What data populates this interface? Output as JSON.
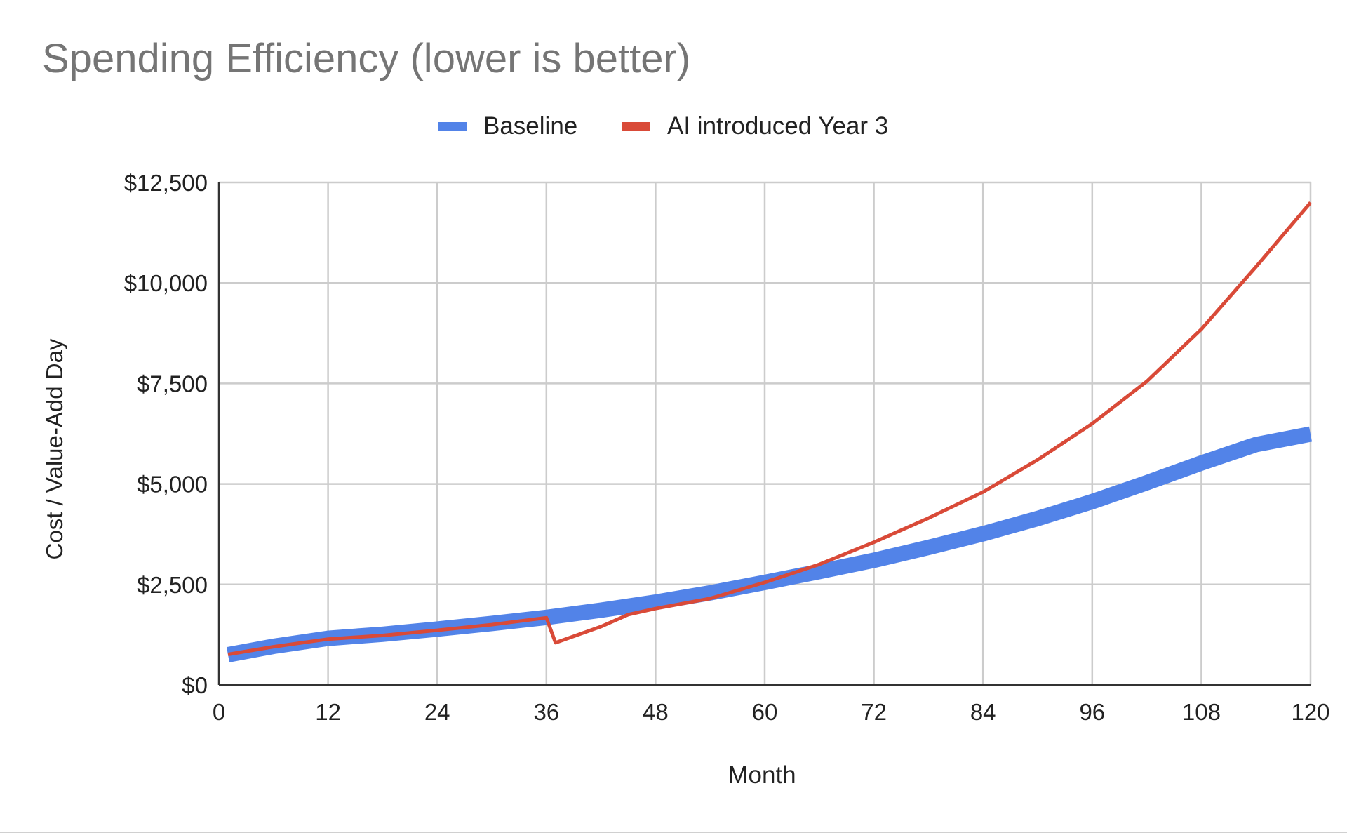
{
  "chart_data": {
    "type": "line",
    "title": "Spending Efficiency (lower is better)",
    "xlabel": "Month",
    "ylabel": "Cost / Value-Add Day",
    "xlim": [
      0,
      120
    ],
    "ylim": [
      0,
      12500
    ],
    "x_ticks": [
      "0",
      "12",
      "24",
      "36",
      "48",
      "60",
      "72",
      "84",
      "96",
      "108",
      "120"
    ],
    "y_ticks": [
      "$0",
      "$2,500",
      "$5,000",
      "$7,500",
      "$10,000",
      "$12,500"
    ],
    "grid": true,
    "legend_position": "top",
    "series": [
      {
        "name": "Baseline",
        "color": "#5283e8",
        "points": [
          [
            1,
            750
          ],
          [
            6,
            960
          ],
          [
            12,
            1160
          ],
          [
            18,
            1260
          ],
          [
            24,
            1390
          ],
          [
            30,
            1530
          ],
          [
            36,
            1680
          ],
          [
            42,
            1860
          ],
          [
            48,
            2060
          ],
          [
            54,
            2290
          ],
          [
            60,
            2550
          ],
          [
            66,
            2820
          ],
          [
            72,
            3100
          ],
          [
            78,
            3420
          ],
          [
            84,
            3760
          ],
          [
            90,
            4140
          ],
          [
            96,
            4560
          ],
          [
            102,
            5030
          ],
          [
            108,
            5520
          ],
          [
            114,
            5980
          ],
          [
            120,
            6240
          ]
        ]
      },
      {
        "name": "AI introduced Year 3",
        "color": "#d94a38",
        "points": [
          [
            1,
            760
          ],
          [
            6,
            950
          ],
          [
            12,
            1140
          ],
          [
            18,
            1230
          ],
          [
            24,
            1360
          ],
          [
            30,
            1500
          ],
          [
            36,
            1670
          ],
          [
            37,
            1050
          ],
          [
            42,
            1450
          ],
          [
            45,
            1750
          ],
          [
            48,
            1900
          ],
          [
            54,
            2150
          ],
          [
            60,
            2550
          ],
          [
            66,
            3000
          ],
          [
            72,
            3550
          ],
          [
            78,
            4150
          ],
          [
            84,
            4800
          ],
          [
            90,
            5600
          ],
          [
            96,
            6500
          ],
          [
            102,
            7550
          ],
          [
            108,
            8850
          ],
          [
            114,
            10400
          ],
          [
            120,
            12000
          ]
        ]
      }
    ]
  },
  "colors": {
    "title": "#757575",
    "grid": "#cccccc",
    "axis": "#333333"
  }
}
